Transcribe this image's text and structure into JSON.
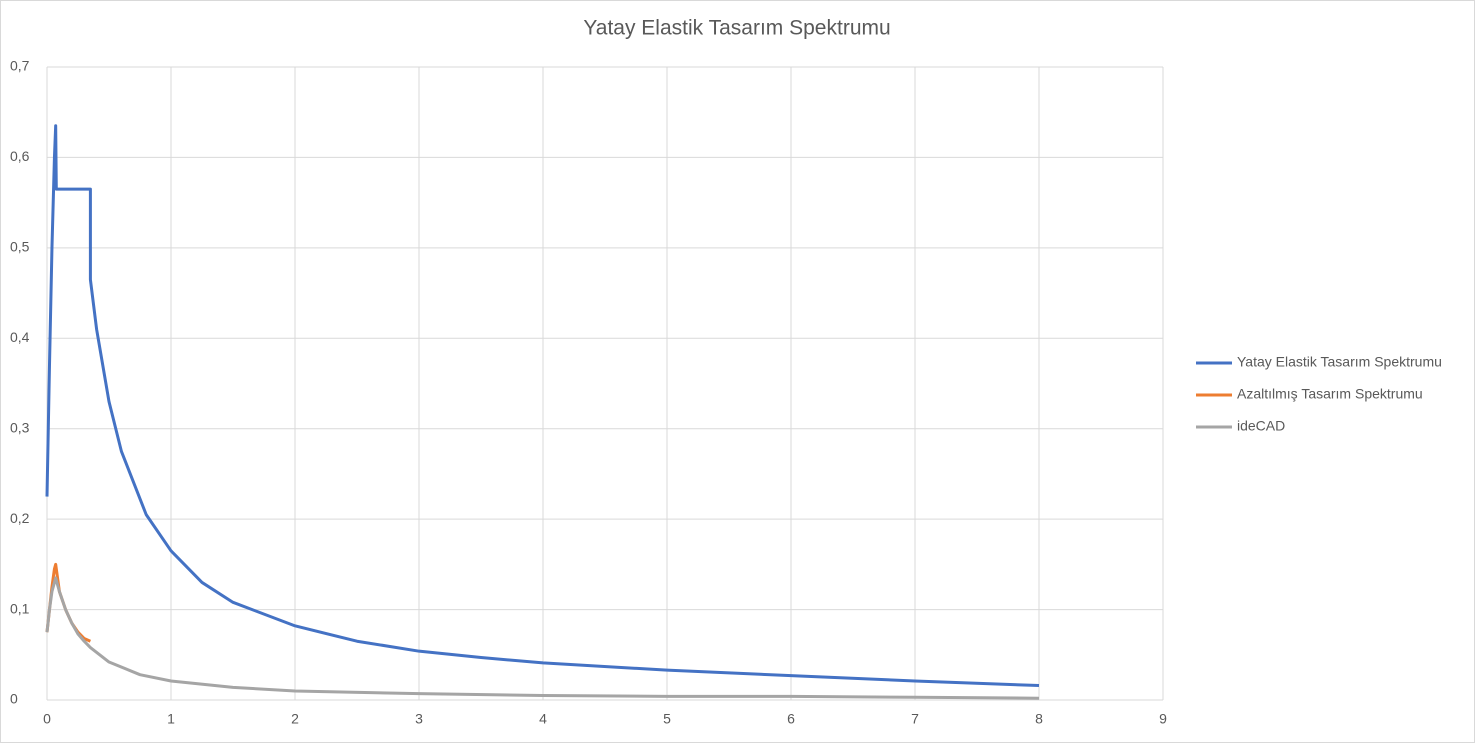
{
  "chart_data": {
    "type": "line",
    "title": "Yatay Elastik Tasarım Spektrumu",
    "xlim": [
      0,
      9
    ],
    "xticks": [
      0,
      1,
      2,
      3,
      4,
      5,
      6,
      7,
      8,
      9
    ],
    "ylim": [
      0,
      0.7
    ],
    "yticks": [
      {
        "value": 0,
        "label": "0"
      },
      {
        "value": 0.1,
        "label": "0,1"
      },
      {
        "value": 0.2,
        "label": "0,2"
      },
      {
        "value": 0.3,
        "label": "0,3"
      },
      {
        "value": 0.4,
        "label": "0,4"
      },
      {
        "value": 0.5,
        "label": "0,5"
      },
      {
        "value": 0.6,
        "label": "0,6"
      },
      {
        "value": 0.7,
        "label": "0,7"
      }
    ],
    "grid": true,
    "legend": "right",
    "series": [
      {
        "name": "Yatay Elastik Tasarım Spektrumu",
        "color": "#4472c4",
        "x": [
          0,
          0.02,
          0.04,
          0.06,
          0.07,
          0.075,
          0.35,
          0.35,
          0.4,
          0.5,
          0.6,
          0.8,
          1,
          1.25,
          1.5,
          2,
          2.5,
          3,
          3.5,
          4,
          5,
          6,
          7,
          8
        ],
        "values": [
          0.225,
          0.37,
          0.5,
          0.6,
          0.635,
          0.565,
          0.565,
          0.465,
          0.41,
          0.33,
          0.275,
          0.205,
          0.165,
          0.13,
          0.108,
          0.082,
          0.065,
          0.054,
          0.047,
          0.041,
          0.033,
          0.027,
          0.021,
          0.016
        ]
      },
      {
        "name": "Azaltılmış Tasarım Spektrumu",
        "color": "#ed7d31",
        "x": [
          0,
          0.02,
          0.04,
          0.06,
          0.07,
          0.1,
          0.15,
          0.2,
          0.25,
          0.3,
          0.35
        ],
        "values": [
          0.075,
          0.1,
          0.125,
          0.145,
          0.15,
          0.12,
          0.1,
          0.085,
          0.075,
          0.068,
          0.065
        ]
      },
      {
        "name": "ideCAD",
        "color": "#a5a5a5",
        "x": [
          0,
          0.02,
          0.04,
          0.07,
          0.1,
          0.15,
          0.2,
          0.25,
          0.3,
          0.35,
          0.5,
          0.75,
          1,
          1.5,
          2,
          3,
          4,
          5,
          6,
          7,
          8
        ],
        "values": [
          0.075,
          0.1,
          0.12,
          0.135,
          0.12,
          0.1,
          0.085,
          0.073,
          0.065,
          0.058,
          0.042,
          0.028,
          0.021,
          0.014,
          0.01,
          0.007,
          0.005,
          0.004,
          0.004,
          0.003,
          0.002
        ]
      }
    ]
  }
}
